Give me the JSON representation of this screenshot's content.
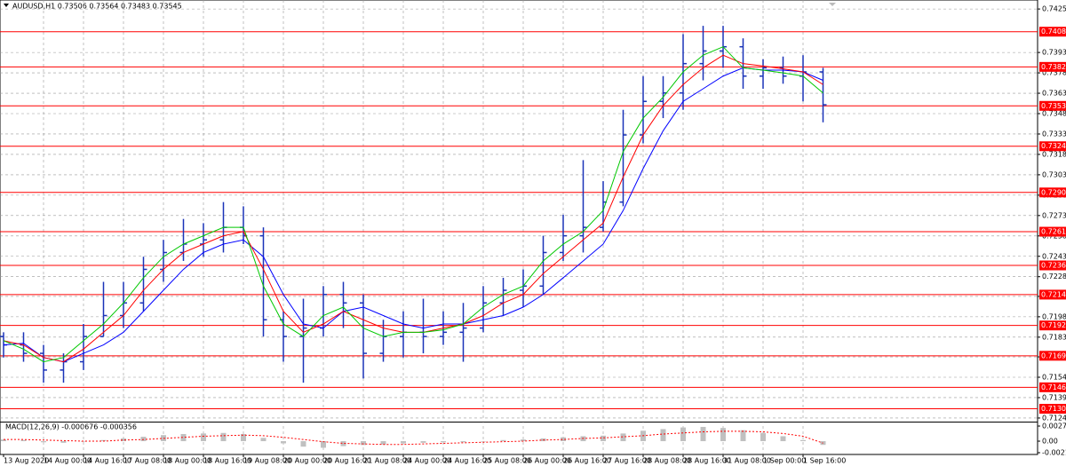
{
  "chart_data": {
    "type": "candlestick",
    "title": "AUDUSD,H1  0.73506 0.73564 0.73483 0.73545",
    "macd_label": "MACD(12,26,9) -0.000676 -0.000356",
    "color": "#1a33b8",
    "grid": true,
    "categories": [
      "13 Aug 2020",
      null,
      "14 Aug 00:00",
      null,
      "14 Aug 16:00",
      null,
      "17 Aug 08:00",
      null,
      "18 Aug 00:00",
      null,
      "18 Aug 16:00",
      null,
      "19 Aug 08:00",
      null,
      "20 Aug 00:00",
      null,
      "20 Aug 16:00",
      null,
      "21 Aug 08:00",
      null,
      "24 Aug 00:00",
      null,
      "24 Aug 16:00",
      null,
      "25 Aug 08:00",
      null,
      "26 Aug 00:00",
      null,
      "26 Aug 16:00",
      null,
      "27 Aug 16:00",
      null,
      "28 Aug 08:00",
      null,
      "28 Aug 16:00",
      null,
      "31 Aug 08:00",
      null,
      "1 Sep 00:00",
      null,
      "1 Sep 16:00",
      null
    ],
    "open": [
      0.7184,
      0.71778,
      0.71716,
      0.71593,
      0.71654,
      0.7184,
      0.71994,
      0.72087,
      0.72334,
      0.72458,
      0.7252,
      0.72551,
      0.72643,
      0.72581,
      0.71963,
      0.7184,
      0.71902,
      0.72149,
      0.72087,
      0.71716,
      0.7184,
      0.71871,
      0.7184,
      0.71871,
      0.71902,
      0.72087,
      0.7218,
      0.72211,
      0.72458,
      0.72581,
      0.72643,
      0.72829,
      0.73323,
      0.7357,
      0.73632,
      0.73848,
      0.73941,
      0.73972,
      0.73756,
      0.73817,
      0.73756,
      0.73787
    ],
    "high": [
      0.71871,
      0.71871,
      0.71778,
      0.71716,
      0.71932,
      0.72242,
      0.72242,
      0.72427,
      0.72551,
      0.72705,
      0.72674,
      0.72829,
      0.72798,
      0.72643,
      0.72025,
      0.72118,
      0.72211,
      0.72242,
      0.72149,
      0.71963,
      0.72025,
      0.72118,
      0.72025,
      0.72087,
      0.72211,
      0.72272,
      0.72334,
      0.72581,
      0.72736,
      0.73138,
      0.72983,
      0.73508,
      0.73756,
      0.73756,
      0.74065,
      0.74126,
      0.74126,
      0.74034,
      0.7388,
      0.739,
      0.7391,
      0.73817
    ],
    "low": [
      0.71685,
      0.71654,
      0.715,
      0.715,
      0.71593,
      0.7184,
      0.71902,
      0.72025,
      0.72242,
      0.72396,
      0.72427,
      0.72458,
      0.7252,
      0.7184,
      0.71654,
      0.715,
      0.7184,
      0.71902,
      0.71531,
      0.71654,
      0.71685,
      0.71716,
      0.71778,
      0.71654,
      0.71871,
      0.71994,
      0.72056,
      0.72149,
      0.72396,
      0.72458,
      0.72612,
      0.72798,
      0.73261,
      0.73447,
      0.73508,
      0.73725,
      0.73817,
      0.73663,
      0.73663,
      0.737,
      0.7357,
      0.73416
    ],
    "close": [
      0.71778,
      0.71716,
      0.71593,
      0.71654,
      0.7184,
      0.71994,
      0.72087,
      0.72334,
      0.72458,
      0.7252,
      0.72551,
      0.72643,
      0.72581,
      0.71963,
      0.7184,
      0.71902,
      0.72149,
      0.72087,
      0.71716,
      0.7184,
      0.71871,
      0.7184,
      0.71871,
      0.71902,
      0.72087,
      0.7218,
      0.72211,
      0.72458,
      0.72581,
      0.72643,
      0.72829,
      0.73323,
      0.7357,
      0.73632,
      0.73848,
      0.73941,
      0.73972,
      0.73756,
      0.73817,
      0.73756,
      0.73787,
      0.73545
    ],
    "mas": [
      {
        "color": "#0000ff",
        "values": [
          0.71778,
          0.7179,
          0.71685,
          0.71654,
          0.71716,
          0.71778,
          0.71871,
          0.72025,
          0.7218,
          0.72334,
          0.72458,
          0.7252,
          0.72551,
          0.72427,
          0.72149,
          0.71932,
          0.71902,
          0.72025,
          0.72056,
          0.71994,
          0.71932,
          0.71902,
          0.71932,
          0.71932,
          0.71963,
          0.71994,
          0.72056,
          0.72149,
          0.72272,
          0.72396,
          0.7252,
          0.72767,
          0.73076,
          0.73354,
          0.7357,
          0.73663,
          0.73756,
          0.73817,
          0.738,
          0.738,
          0.73787,
          0.73725
        ]
      },
      {
        "color": "#ff0000",
        "values": [
          0.71809,
          0.71778,
          0.71685,
          0.71654,
          0.71747,
          0.71871,
          0.71994,
          0.7218,
          0.72334,
          0.72458,
          0.7252,
          0.72581,
          0.72612,
          0.72334,
          0.72025,
          0.71871,
          0.71932,
          0.72025,
          0.71963,
          0.71902,
          0.71871,
          0.71871,
          0.71902,
          0.71932,
          0.71994,
          0.72087,
          0.72149,
          0.72303,
          0.72427,
          0.72551,
          0.72674,
          0.73014,
          0.73323,
          0.73539,
          0.73694,
          0.73817,
          0.7391,
          0.73848,
          0.7383,
          0.7381,
          0.73787,
          0.73694
        ]
      },
      {
        "color": "#00c800",
        "values": [
          0.71809,
          0.71747,
          0.71654,
          0.71685,
          0.71809,
          0.71932,
          0.72087,
          0.72272,
          0.72427,
          0.7252,
          0.72581,
          0.72643,
          0.72643,
          0.72211,
          0.71932,
          0.7184,
          0.71994,
          0.72056,
          0.71902,
          0.7184,
          0.71871,
          0.71871,
          0.71889,
          0.71932,
          0.72056,
          0.72149,
          0.72211,
          0.72396,
          0.7252,
          0.72612,
          0.72767,
          0.732,
          0.73447,
          0.73601,
          0.73787,
          0.7391,
          0.73972,
          0.73817,
          0.738,
          0.7378,
          0.73756,
          0.73632
        ]
      }
    ],
    "ylim": [
      0.7122,
      0.7429
    ],
    "yticks": [
      {
        "value": 0.7425,
        "label": "0.74250"
      },
      {
        "value": 0.7393,
        "label": "0.73930"
      },
      {
        "value": 0.7378,
        "label": "0.73780"
      },
      {
        "value": 0.7363,
        "label": "0.73630"
      },
      {
        "value": 0.7348,
        "label": "0.73480"
      },
      {
        "value": 0.7333,
        "label": "0.73330"
      },
      {
        "value": 0.7318,
        "label": "0.73180"
      },
      {
        "value": 0.7303,
        "label": "0.73030"
      },
      {
        "value": 0.7288,
        "label": "0.72880"
      },
      {
        "value": 0.7273,
        "label": "0.72730"
      },
      {
        "value": 0.7258,
        "label": "0.72580"
      },
      {
        "value": 0.7243,
        "label": "0.72430"
      },
      {
        "value": 0.7228,
        "label": "0.72280"
      },
      0.72135,
      0.71985,
      0.71835,
      {
        "value": 0.7169,
        "label": "0.71690"
      },
      {
        "value": 0.7154,
        "label": "0.71540"
      },
      {
        "value": 0.7139,
        "label": "0.71390"
      },
      {
        "value": 0.7124,
        "label": "0.71240"
      }
    ],
    "levels": [
      0.74083,
      0.73824,
      0.73537,
      0.7324,
      {
        "value": 0.729,
        "label": "0.72900"
      },
      0.72611,
      0.72363,
      0.72148,
      0.71921,
      0.71698,
      0.71466,
      0.71308
    ],
    "level_color": "#ff0000",
    "macd": {
      "values": [
        0.0003,
        0.0002,
        -0.0002,
        -0.0003,
        -0.0001,
        0.0002,
        0.0005,
        0.0008,
        0.0011,
        0.0013,
        0.0014,
        0.0015,
        0.0013,
        0.0006,
        -0.0004,
        -0.001,
        -0.0012,
        -0.0009,
        -0.0007,
        -0.0006,
        -0.0004,
        -0.0003,
        -0.0002,
        -0.0002,
        0,
        0.0002,
        0.0003,
        0.0005,
        0.0007,
        0.0009,
        0.001,
        0.0014,
        0.0019,
        0.0022,
        0.0025,
        0.0026,
        0.0024,
        0.002,
        0.0015,
        0.0009,
        0.0002,
        -0.000676
      ],
      "color": "#c0c0c0",
      "signal": [
        0.0003,
        0.0003,
        0.0002,
        0.0001,
        0,
        0,
        0.0002,
        0.0003,
        0.0005,
        0.0007,
        0.0009,
        0.001,
        0.0011,
        0.001,
        0.0007,
        0.0003,
        -0.0001,
        -0.0004,
        -0.0005,
        -0.0006,
        -0.0006,
        -0.0005,
        -0.0004,
        -0.0003,
        -0.0002,
        -0.0001,
        0,
        0.0002,
        0.0003,
        0.0005,
        0.0006,
        0.0008,
        0.001,
        0.0013,
        0.0015,
        0.0017,
        0.0018,
        0.0018,
        0.0017,
        0.0014,
        0.0009,
        -0.000356
      ],
      "signal_color": "#ff0000",
      "ylim": [
        -0.002101,
        0.002754
      ],
      "yticks": [
        0.002754,
        {
          "value": 0,
          "label": "0.00"
        },
        -0.002101
      ]
    }
  }
}
